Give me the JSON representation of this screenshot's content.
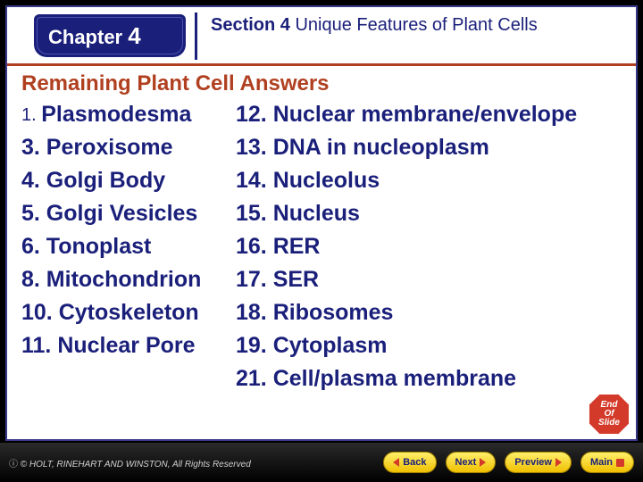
{
  "colors": {
    "brand_blue": "#1a1f7a",
    "accent_red": "#b04020",
    "stop_red": "#d43a2a",
    "nav_yellow_top": "#ffef6a",
    "nav_yellow_bot": "#f0c000",
    "background": "#000000",
    "slide_bg": "#ffffff"
  },
  "typography": {
    "body_font": "Arial",
    "list_fontsize_pt": 19,
    "subtitle_fontsize_pt": 18,
    "header_fontsize_pt": 16
  },
  "header": {
    "chapter_label": "Chapter",
    "chapter_number": "4",
    "section_prefix": "Section 4",
    "section_rest": " Unique Features of Plant Cells"
  },
  "subtitle": "Remaining Plant Cell Answers",
  "answers": {
    "left": [
      {
        "num": "1.",
        "text": "Plasmodesma"
      },
      {
        "num": "3.",
        "text": "Peroxisome"
      },
      {
        "num": "4.",
        "text": "Golgi Body"
      },
      {
        "num": "5.",
        "text": "Golgi Vesicles"
      },
      {
        "num": "6.",
        "text": "Tonoplast"
      },
      {
        "num": "8.",
        "text": "Mitochondrion"
      },
      {
        "num": "10.",
        "text": "Cytoskeleton"
      },
      {
        "num": "11.",
        "text": "Nuclear Pore"
      }
    ],
    "right": [
      {
        "num": "12.",
        "text": "Nuclear membrane/envelope"
      },
      {
        "num": "13.",
        "text": "DNA in nucleoplasm"
      },
      {
        "num": "14.",
        "text": "Nucleolus"
      },
      {
        "num": "15.",
        "text": "Nucleus"
      },
      {
        "num": "16.",
        "text": "RER"
      },
      {
        "num": "17.",
        "text": "SER"
      },
      {
        "num": "18.",
        "text": "Ribosomes"
      },
      {
        "num": "19.",
        "text": "Cytoplasm"
      },
      {
        "num": "21.",
        "text": "Cell/plasma membrane"
      }
    ]
  },
  "end_badge": {
    "line1": "End",
    "line2": "Of",
    "line3": "Slide"
  },
  "footer": {
    "copyright": "© HOLT, RINEHART AND WINSTON, All Rights Reserved",
    "buttons": {
      "back": "Back",
      "next": "Next",
      "preview": "Preview",
      "main": "Main"
    }
  }
}
